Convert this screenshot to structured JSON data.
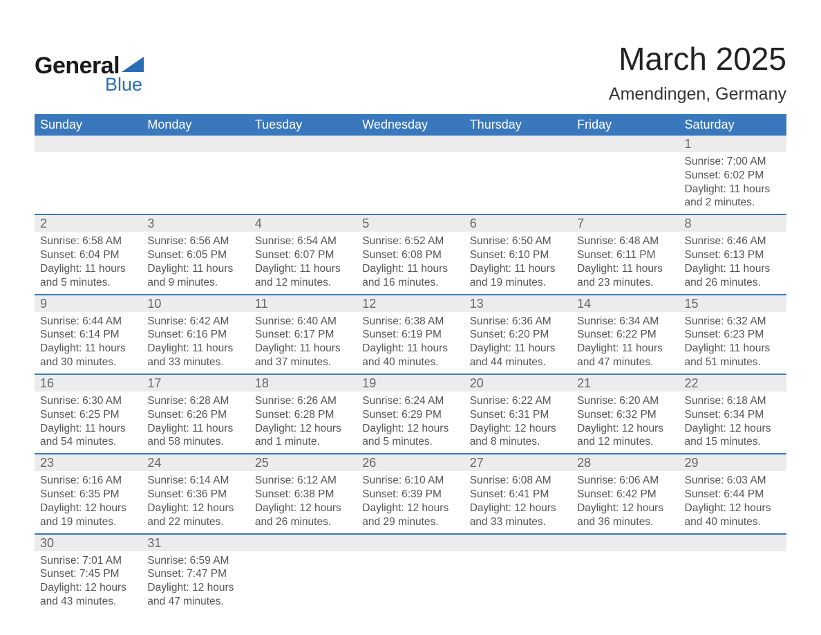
{
  "logo": {
    "line1": "General",
    "line2": "Blue",
    "triangle_color": "#2a6db5"
  },
  "title": "March 2025",
  "location": "Amendingen, Germany",
  "colors": {
    "header_bg": "#3a78bd",
    "header_text": "#ffffff",
    "daybar_bg": "#ececec",
    "daybar_text": "#666666",
    "body_text": "#555555",
    "week_divider": "#3a78bd"
  },
  "typography": {
    "title_fontsize": 46,
    "location_fontsize": 25,
    "dow_fontsize": 18,
    "daynum_fontsize": 18,
    "detail_fontsize": 15.5
  },
  "days_of_week": [
    "Sunday",
    "Monday",
    "Tuesday",
    "Wednesday",
    "Thursday",
    "Friday",
    "Saturday"
  ],
  "weeks": [
    [
      null,
      null,
      null,
      null,
      null,
      null,
      {
        "n": "1",
        "sunrise": "Sunrise: 7:00 AM",
        "sunset": "Sunset: 6:02 PM",
        "day1": "Daylight: 11 hours",
        "day2": "and 2 minutes."
      }
    ],
    [
      {
        "n": "2",
        "sunrise": "Sunrise: 6:58 AM",
        "sunset": "Sunset: 6:04 PM",
        "day1": "Daylight: 11 hours",
        "day2": "and 5 minutes."
      },
      {
        "n": "3",
        "sunrise": "Sunrise: 6:56 AM",
        "sunset": "Sunset: 6:05 PM",
        "day1": "Daylight: 11 hours",
        "day2": "and 9 minutes."
      },
      {
        "n": "4",
        "sunrise": "Sunrise: 6:54 AM",
        "sunset": "Sunset: 6:07 PM",
        "day1": "Daylight: 11 hours",
        "day2": "and 12 minutes."
      },
      {
        "n": "5",
        "sunrise": "Sunrise: 6:52 AM",
        "sunset": "Sunset: 6:08 PM",
        "day1": "Daylight: 11 hours",
        "day2": "and 16 minutes."
      },
      {
        "n": "6",
        "sunrise": "Sunrise: 6:50 AM",
        "sunset": "Sunset: 6:10 PM",
        "day1": "Daylight: 11 hours",
        "day2": "and 19 minutes."
      },
      {
        "n": "7",
        "sunrise": "Sunrise: 6:48 AM",
        "sunset": "Sunset: 6:11 PM",
        "day1": "Daylight: 11 hours",
        "day2": "and 23 minutes."
      },
      {
        "n": "8",
        "sunrise": "Sunrise: 6:46 AM",
        "sunset": "Sunset: 6:13 PM",
        "day1": "Daylight: 11 hours",
        "day2": "and 26 minutes."
      }
    ],
    [
      {
        "n": "9",
        "sunrise": "Sunrise: 6:44 AM",
        "sunset": "Sunset: 6:14 PM",
        "day1": "Daylight: 11 hours",
        "day2": "and 30 minutes."
      },
      {
        "n": "10",
        "sunrise": "Sunrise: 6:42 AM",
        "sunset": "Sunset: 6:16 PM",
        "day1": "Daylight: 11 hours",
        "day2": "and 33 minutes."
      },
      {
        "n": "11",
        "sunrise": "Sunrise: 6:40 AM",
        "sunset": "Sunset: 6:17 PM",
        "day1": "Daylight: 11 hours",
        "day2": "and 37 minutes."
      },
      {
        "n": "12",
        "sunrise": "Sunrise: 6:38 AM",
        "sunset": "Sunset: 6:19 PM",
        "day1": "Daylight: 11 hours",
        "day2": "and 40 minutes."
      },
      {
        "n": "13",
        "sunrise": "Sunrise: 6:36 AM",
        "sunset": "Sunset: 6:20 PM",
        "day1": "Daylight: 11 hours",
        "day2": "and 44 minutes."
      },
      {
        "n": "14",
        "sunrise": "Sunrise: 6:34 AM",
        "sunset": "Sunset: 6:22 PM",
        "day1": "Daylight: 11 hours",
        "day2": "and 47 minutes."
      },
      {
        "n": "15",
        "sunrise": "Sunrise: 6:32 AM",
        "sunset": "Sunset: 6:23 PM",
        "day1": "Daylight: 11 hours",
        "day2": "and 51 minutes."
      }
    ],
    [
      {
        "n": "16",
        "sunrise": "Sunrise: 6:30 AM",
        "sunset": "Sunset: 6:25 PM",
        "day1": "Daylight: 11 hours",
        "day2": "and 54 minutes."
      },
      {
        "n": "17",
        "sunrise": "Sunrise: 6:28 AM",
        "sunset": "Sunset: 6:26 PM",
        "day1": "Daylight: 11 hours",
        "day2": "and 58 minutes."
      },
      {
        "n": "18",
        "sunrise": "Sunrise: 6:26 AM",
        "sunset": "Sunset: 6:28 PM",
        "day1": "Daylight: 12 hours",
        "day2": "and 1 minute."
      },
      {
        "n": "19",
        "sunrise": "Sunrise: 6:24 AM",
        "sunset": "Sunset: 6:29 PM",
        "day1": "Daylight: 12 hours",
        "day2": "and 5 minutes."
      },
      {
        "n": "20",
        "sunrise": "Sunrise: 6:22 AM",
        "sunset": "Sunset: 6:31 PM",
        "day1": "Daylight: 12 hours",
        "day2": "and 8 minutes."
      },
      {
        "n": "21",
        "sunrise": "Sunrise: 6:20 AM",
        "sunset": "Sunset: 6:32 PM",
        "day1": "Daylight: 12 hours",
        "day2": "and 12 minutes."
      },
      {
        "n": "22",
        "sunrise": "Sunrise: 6:18 AM",
        "sunset": "Sunset: 6:34 PM",
        "day1": "Daylight: 12 hours",
        "day2": "and 15 minutes."
      }
    ],
    [
      {
        "n": "23",
        "sunrise": "Sunrise: 6:16 AM",
        "sunset": "Sunset: 6:35 PM",
        "day1": "Daylight: 12 hours",
        "day2": "and 19 minutes."
      },
      {
        "n": "24",
        "sunrise": "Sunrise: 6:14 AM",
        "sunset": "Sunset: 6:36 PM",
        "day1": "Daylight: 12 hours",
        "day2": "and 22 minutes."
      },
      {
        "n": "25",
        "sunrise": "Sunrise: 6:12 AM",
        "sunset": "Sunset: 6:38 PM",
        "day1": "Daylight: 12 hours",
        "day2": "and 26 minutes."
      },
      {
        "n": "26",
        "sunrise": "Sunrise: 6:10 AM",
        "sunset": "Sunset: 6:39 PM",
        "day1": "Daylight: 12 hours",
        "day2": "and 29 minutes."
      },
      {
        "n": "27",
        "sunrise": "Sunrise: 6:08 AM",
        "sunset": "Sunset: 6:41 PM",
        "day1": "Daylight: 12 hours",
        "day2": "and 33 minutes."
      },
      {
        "n": "28",
        "sunrise": "Sunrise: 6:06 AM",
        "sunset": "Sunset: 6:42 PM",
        "day1": "Daylight: 12 hours",
        "day2": "and 36 minutes."
      },
      {
        "n": "29",
        "sunrise": "Sunrise: 6:03 AM",
        "sunset": "Sunset: 6:44 PM",
        "day1": "Daylight: 12 hours",
        "day2": "and 40 minutes."
      }
    ],
    [
      {
        "n": "30",
        "sunrise": "Sunrise: 7:01 AM",
        "sunset": "Sunset: 7:45 PM",
        "day1": "Daylight: 12 hours",
        "day2": "and 43 minutes."
      },
      {
        "n": "31",
        "sunrise": "Sunrise: 6:59 AM",
        "sunset": "Sunset: 7:47 PM",
        "day1": "Daylight: 12 hours",
        "day2": "and 47 minutes."
      },
      null,
      null,
      null,
      null,
      null
    ]
  ]
}
